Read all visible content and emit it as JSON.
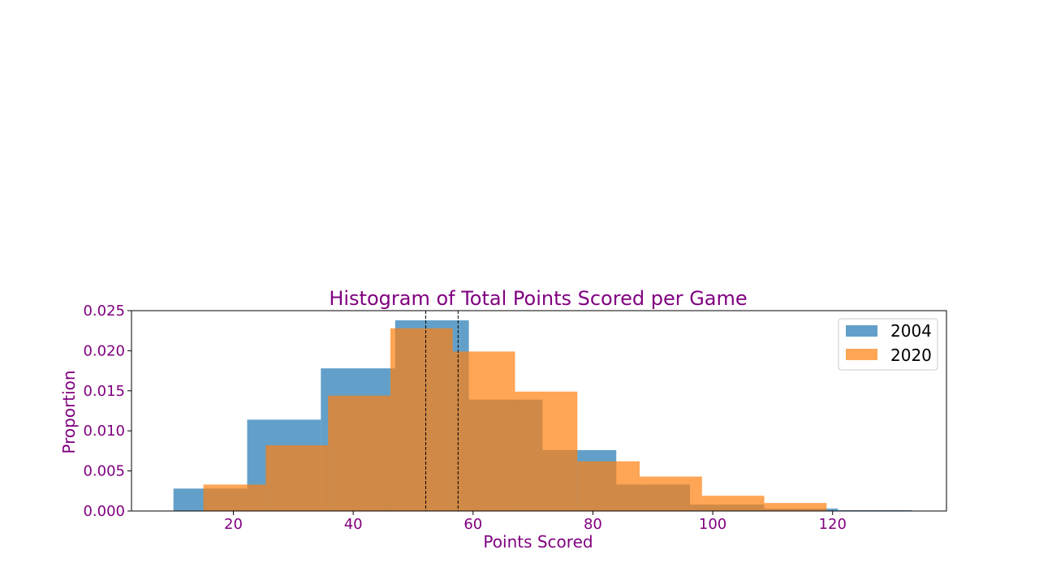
{
  "chart_data": {
    "type": "bar",
    "title": "Histogram of Total Points Scored per Game",
    "xlabel": "Points Scored",
    "ylabel": "Proportion",
    "xlim": [
      3,
      139
    ],
    "ylim": [
      0,
      0.025
    ],
    "xticks": [
      20,
      40,
      60,
      80,
      100,
      120
    ],
    "yticks": [
      0.0,
      0.005,
      0.01,
      0.015,
      0.02,
      0.025
    ],
    "ytick_labels": [
      "0.000",
      "0.005",
      "0.010",
      "0.015",
      "0.020",
      "0.025"
    ],
    "grid": false,
    "legend": "top-right",
    "series": [
      {
        "name": "2004",
        "color": "#1f77b4",
        "opacity": 0.7,
        "bins": [
          {
            "x0": 10.0,
            "x1": 22.3,
            "y": 0.0028
          },
          {
            "x0": 22.3,
            "x1": 34.6,
            "y": 0.0114
          },
          {
            "x0": 34.6,
            "x1": 47.0,
            "y": 0.0178
          },
          {
            "x0": 47.0,
            "x1": 59.3,
            "y": 0.0238
          },
          {
            "x0": 59.3,
            "x1": 71.6,
            "y": 0.0139
          },
          {
            "x0": 71.6,
            "x1": 83.9,
            "y": 0.0076
          },
          {
            "x0": 83.9,
            "x1": 96.2,
            "y": 0.0033
          },
          {
            "x0": 96.2,
            "x1": 108.6,
            "y": 0.0008
          },
          {
            "x0": 108.6,
            "x1": 120.9,
            "y": 0.0003
          },
          {
            "x0": 120.9,
            "x1": 133.2,
            "y": 0.0001
          }
        ]
      },
      {
        "name": "2020",
        "color": "#ff7f0e",
        "opacity": 0.7,
        "bins": [
          {
            "x0": 15.0,
            "x1": 25.4,
            "y": 0.0033
          },
          {
            "x0": 25.4,
            "x1": 35.8,
            "y": 0.0082
          },
          {
            "x0": 35.8,
            "x1": 46.2,
            "y": 0.0144
          },
          {
            "x0": 46.2,
            "x1": 56.6,
            "y": 0.0228
          },
          {
            "x0": 56.6,
            "x1": 67.0,
            "y": 0.0199
          },
          {
            "x0": 67.0,
            "x1": 77.4,
            "y": 0.0149
          },
          {
            "x0": 77.4,
            "x1": 87.8,
            "y": 0.0062
          },
          {
            "x0": 87.8,
            "x1": 98.2,
            "y": 0.0043
          },
          {
            "x0": 98.2,
            "x1": 108.6,
            "y": 0.0019
          },
          {
            "x0": 108.6,
            "x1": 119.0,
            "y": 0.001
          }
        ]
      }
    ],
    "vlines": [
      52.1,
      57.5
    ],
    "text_color": "#800080"
  }
}
